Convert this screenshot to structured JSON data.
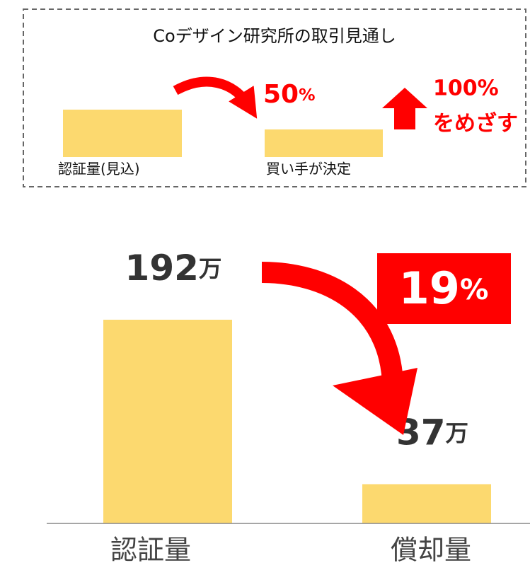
{
  "inset": {
    "title": "Coデザイン研究所の取引見通し",
    "bars": [
      {
        "label": "認証量(見込)"
      },
      {
        "label": "買い手が決定"
      }
    ],
    "annotation": "50%",
    "goal": [
      "100%",
      "をめざす"
    ]
  },
  "chart_data": {
    "type": "bar",
    "categories": [
      "認証量",
      "償却量"
    ],
    "values": [
      192,
      37
    ],
    "value_labels": [
      "192万",
      "37万"
    ],
    "color": "#fcd96f",
    "annotation": "19%"
  }
}
